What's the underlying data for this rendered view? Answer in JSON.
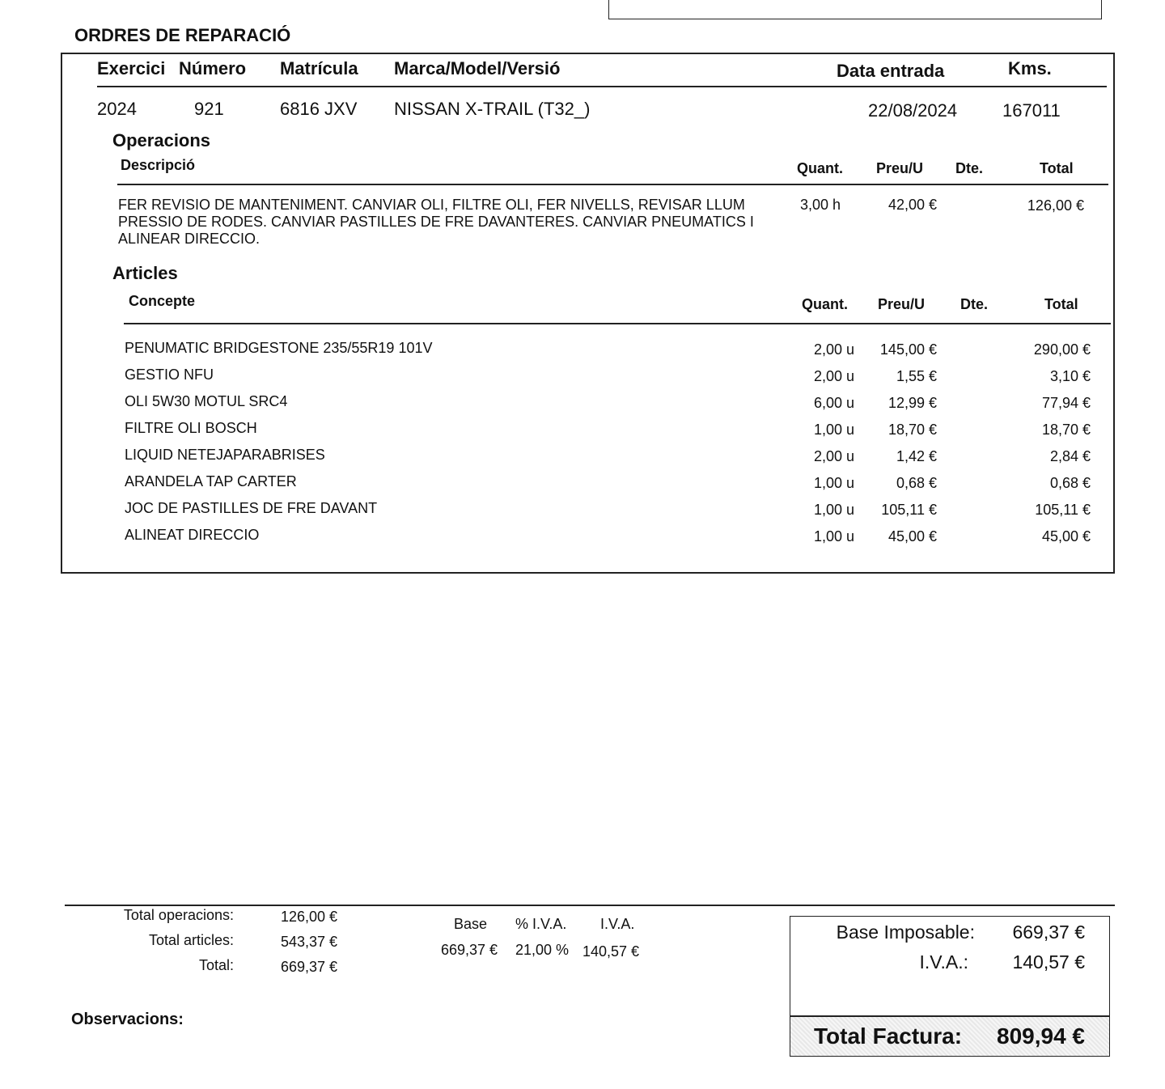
{
  "title": "ORDRES DE REPARACIÓ",
  "header": {
    "cols": [
      "Exercici",
      "Número",
      "Matrícula",
      "Marca/Model/Versió",
      "Data entrada",
      "Kms."
    ],
    "values": [
      "2024",
      "921",
      "6816 JXV",
      "NISSAN X-TRAIL (T32_)",
      "22/08/2024",
      "167011"
    ]
  },
  "operacions": {
    "title": "Operacions",
    "cols": [
      "Descripció",
      "Quant.",
      "Preu/U",
      "Dte.",
      "Total"
    ],
    "items": [
      {
        "desc": [
          "FER REVISIO DE MANTENIMENT. CANVIAR OLI, FILTRE OLI, FER NIVELLS, REVISAR LLUM",
          "PRESSIO DE RODES. CANVIAR PASTILLES DE FRE DAVANTERES. CANVIAR PNEUMATICS I",
          "ALINEAR DIRECCIO."
        ],
        "qty": "3,00 h",
        "price": "42,00 €",
        "dte": "",
        "total": "126,00 €"
      }
    ]
  },
  "articles": {
    "title": "Articles",
    "cols": [
      "Concepte",
      "Quant.",
      "Preu/U",
      "Dte.",
      "Total"
    ],
    "items": [
      {
        "concept": "PENUMATIC BRIDGESTONE 235/55R19 101V",
        "qty": "2,00 u",
        "price": "145,00 €",
        "total": "290,00 €"
      },
      {
        "concept": "GESTIO NFU",
        "qty": "2,00 u",
        "price": "1,55 €",
        "total": "3,10 €"
      },
      {
        "concept": "OLI 5W30 MOTUL SRC4",
        "qty": "6,00 u",
        "price": "12,99 €",
        "total": "77,94 €"
      },
      {
        "concept": "FILTRE OLI BOSCH",
        "qty": "1,00 u",
        "price": "18,70 €",
        "total": "18,70 €"
      },
      {
        "concept": "LIQUID NETEJAPARABRISES",
        "qty": "2,00 u",
        "price": "1,42 €",
        "total": "2,84 €"
      },
      {
        "concept": "ARANDELA TAP CARTER",
        "qty": "1,00 u",
        "price": "0,68 €",
        "total": "0,68 €"
      },
      {
        "concept": "JOC DE PASTILLES DE FRE DAVANT",
        "qty": "1,00 u",
        "price": "105,11 €",
        "total": "105,11 €"
      },
      {
        "concept": "ALINEAT DIRECCIO",
        "qty": "1,00 u",
        "price": "45,00 €",
        "total": "45,00 €"
      }
    ]
  },
  "summary": {
    "labels": [
      "Total operacions:",
      "Total articles:",
      "Total:"
    ],
    "values": [
      "126,00 €",
      "543,37 €",
      "669,37 €"
    ]
  },
  "iva": {
    "cols": [
      "Base",
      "% I.V.A.",
      "I.V.A."
    ],
    "values": [
      "669,37 €",
      "21,00 %",
      "140,57 €"
    ]
  },
  "observacions": "Observacions:",
  "totals": {
    "base_label": "Base Imposable:",
    "base": "669,37 €",
    "iva_label": "I.V.A.:",
    "iva": "140,57 €",
    "total_label": "Total Factura:",
    "total": "809,94 €"
  }
}
